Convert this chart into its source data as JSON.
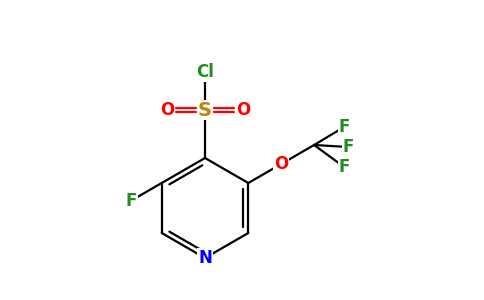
{
  "background_color": "#ffffff",
  "bond_color": "#000000",
  "atom_colors": {
    "N": "#0000ff",
    "O": "#ff0000",
    "F": "#228B22",
    "S": "#b8860b",
    "Cl": "#228B22",
    "C": "#000000"
  },
  "figsize": [
    4.84,
    3.0
  ],
  "dpi": 100,
  "bond_lw": 1.6
}
